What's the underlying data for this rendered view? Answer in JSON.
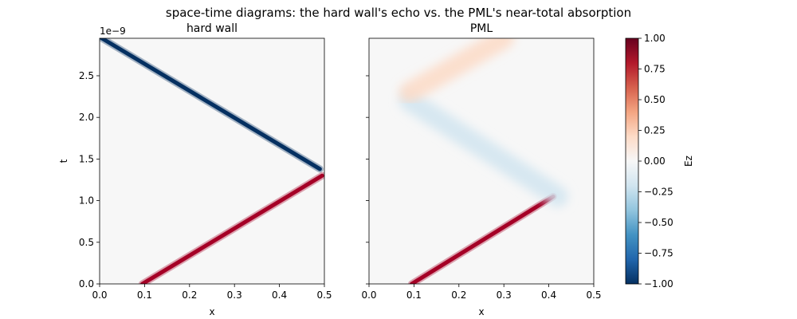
{
  "figure": {
    "title": "space-time diagrams: the hard wall's echo vs. the PML's near-total absorption"
  },
  "chart_data": [
    {
      "type": "heatmap",
      "title": "hard wall",
      "xlabel": "x",
      "ylabel": "t",
      "xlim": [
        0.0,
        0.5
      ],
      "ylim": [
        0.0,
        2.95e-09
      ],
      "y_scale_label": "1e−9",
      "xticks": [
        "0.0",
        "0.1",
        "0.2",
        "0.3",
        "0.4",
        "0.5"
      ],
      "yticks": [
        "0.0",
        "0.5",
        "1.0",
        "1.5",
        "2.0",
        "2.5"
      ],
      "background": "#f7f7f7",
      "pulses": [
        {
          "label": "incident",
          "x0": 0.095,
          "t0": 0.0,
          "x1": 0.495,
          "t1": 1.3e-09,
          "amplitude": 1.0,
          "color": "#a50026"
        },
        {
          "label": "reflected",
          "x0": 0.49,
          "t0": 1.38e-09,
          "x1": 0.005,
          "t1": 2.95e-09,
          "amplitude": -1.0,
          "color": "#053061"
        }
      ]
    },
    {
      "type": "heatmap",
      "title": "PML",
      "xlabel": "x",
      "ylabel": "",
      "xlim": [
        0.0,
        0.5
      ],
      "ylim": [
        0.0,
        2.95e-09
      ],
      "xticks": [
        "0.0",
        "0.1",
        "0.2",
        "0.3",
        "0.4",
        "0.5"
      ],
      "background": "#f7f7f7",
      "pulses": [
        {
          "label": "incident",
          "x0": 0.095,
          "t0": 0.0,
          "x1": 0.41,
          "t1": 1.05e-09,
          "amplitude": 1.0,
          "color": "#a50026"
        },
        {
          "label": "residual reflection",
          "x0": 0.42,
          "t0": 1.05e-09,
          "x1": 0.09,
          "t1": 2.2e-09,
          "amplitude": -0.12,
          "color": "#d1e5f0"
        },
        {
          "label": "residual echo",
          "x0": 0.09,
          "t0": 2.3e-09,
          "x1": 0.3,
          "t1": 2.95e-09,
          "amplitude": 0.12,
          "color": "#fddbc7"
        }
      ]
    }
  ],
  "colorbar": {
    "label": "Ez",
    "range": [
      -1.0,
      1.0
    ],
    "ticks": [
      "1.00",
      "0.75",
      "0.50",
      "0.25",
      "0.00",
      "−0.25",
      "−0.50",
      "−0.75",
      "−1.00"
    ],
    "colors": [
      "#67001f",
      "#b2182b",
      "#d6604d",
      "#f4a582",
      "#fddbc7",
      "#f7f7f7",
      "#d1e5f0",
      "#92c5de",
      "#4393c3",
      "#2166ac",
      "#053061"
    ]
  }
}
